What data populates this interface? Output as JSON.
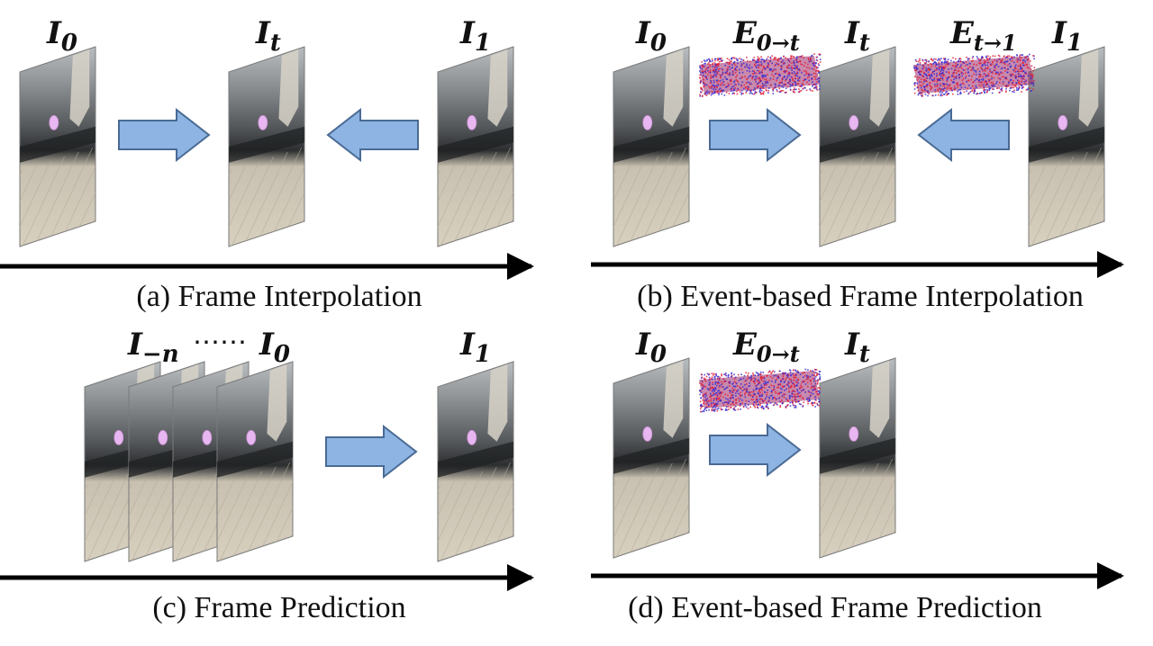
{
  "panels": {
    "a": {
      "caption": "(a) Frame Interpolation",
      "labels": [
        {
          "base": "I",
          "sub": "0"
        },
        {
          "base": "I",
          "sub": "t"
        },
        {
          "base": "I",
          "sub": "1"
        }
      ]
    },
    "b": {
      "caption": "(b) Event-based Frame Interpolation",
      "labels": [
        {
          "base": "I",
          "sub": "0"
        },
        {
          "base": "E",
          "sub": "0→t"
        },
        {
          "base": "I",
          "sub": "t"
        },
        {
          "base": "E",
          "sub": "t→1"
        },
        {
          "base": "I",
          "sub": "1"
        }
      ]
    },
    "c": {
      "caption": "(c) Frame Prediction",
      "labels": [
        {
          "base": "I",
          "sub": "−n"
        },
        {
          "base": "I",
          "sub": "0"
        },
        {
          "base": "I",
          "sub": "1"
        }
      ],
      "ellipsis": "⋯⋯"
    },
    "d": {
      "caption": "(d) Event-based Frame Prediction",
      "labels": [
        {
          "base": "I",
          "sub": "0"
        },
        {
          "base": "E",
          "sub": "0→t"
        },
        {
          "base": "I",
          "sub": "t"
        }
      ]
    }
  },
  "colors": {
    "arrow_fill": "#8db4e2",
    "arrow_stroke": "#4a6a94",
    "timeline": "#000000",
    "event_red": "#e0203a",
    "event_blue": "#3a2ad0",
    "ball": "#e8b6f0"
  }
}
